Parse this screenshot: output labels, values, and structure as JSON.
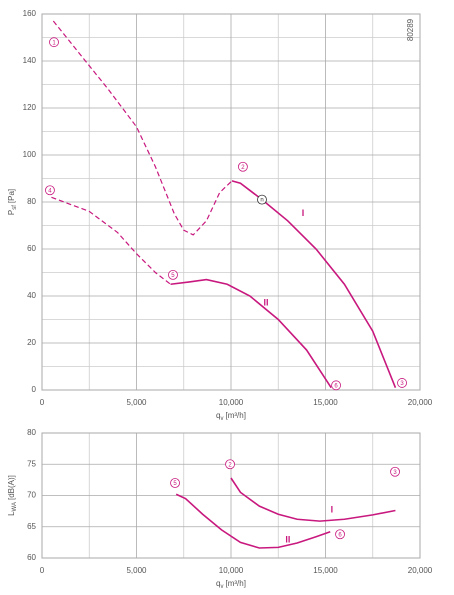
{
  "chart_data": [
    {
      "type": "line",
      "code": "80289",
      "xlabel_symbol": "q",
      "xlabel_sub": "v",
      "xlabel_unit": "[m³/h]",
      "ylabel_symbol": "P",
      "ylabel_sub": "sf",
      "ylabel_unit": "[Pa]",
      "xlim": [
        0,
        20000
      ],
      "ylim": [
        0,
        160
      ],
      "xticks": [
        0,
        {
          "value": 5000,
          "label": "5,000"
        },
        {
          "value": 10000,
          "label": "10,000"
        },
        {
          "value": 15000,
          "label": "15,000"
        },
        {
          "value": 20000,
          "label": "20,000"
        }
      ],
      "yticks": [
        0,
        20,
        40,
        60,
        80,
        100,
        120,
        140,
        160
      ],
      "x_minor_ticks": [
        2500,
        7500,
        12500,
        17500
      ],
      "y_minor_ticks": [
        10,
        30,
        50,
        70,
        90,
        110,
        130,
        150
      ],
      "grid": true,
      "color": "#c8187e",
      "series": [
        {
          "style": "dashed",
          "x": [
            600,
            2000,
            3500,
            5000,
            6000,
            7000,
            7500,
            8000,
            8700,
            9400,
            10050
          ],
          "values": [
            157,
            143,
            128,
            112,
            95,
            75,
            68,
            66,
            72,
            84,
            89
          ]
        },
        {
          "name": "I",
          "style": "solid",
          "x": [
            10050,
            10500,
            11640,
            13000,
            14500,
            16000,
            17500,
            18700
          ],
          "values": [
            89,
            88,
            81,
            72,
            60,
            45,
            25,
            1
          ]
        },
        {
          "style": "dashed",
          "x": [
            500,
            2500,
            4000,
            5000,
            6000,
            6800
          ],
          "values": [
            82,
            76,
            67,
            58,
            50,
            45
          ]
        },
        {
          "name": "II",
          "style": "solid",
          "x": [
            6800,
            7800,
            8700,
            9800,
            11000,
            12500,
            14000,
            15300
          ],
          "values": [
            45,
            46,
            47,
            45,
            40,
            30,
            17,
            1
          ]
        }
      ],
      "name_positions": [
        null,
        {
          "x": 13810,
          "y": 75
        },
        null,
        {
          "x": 11850,
          "y": 37
        }
      ],
      "markers": [
        {
          "label": "1",
          "x": 635,
          "y": 148
        },
        {
          "label": "2",
          "x": 10630,
          "y": 95
        },
        {
          "label": "4",
          "x": 420,
          "y": 85
        },
        {
          "label": "5",
          "x": 6930,
          "y": 49
        },
        {
          "label": "3",
          "x": 19050,
          "y": 3
        },
        {
          "label": "6",
          "x": 15560,
          "y": 2
        },
        {
          "label": "n",
          "x": 11640,
          "y": 81,
          "dark": true
        }
      ]
    },
    {
      "type": "line",
      "xlabel_symbol": "q",
      "xlabel_sub": "v",
      "xlabel_unit": "[m³/h]",
      "ylabel_symbol": "L",
      "ylabel_sub": "WA",
      "ylabel_unit": "[dB(A)]",
      "xlim": [
        0,
        20000
      ],
      "ylim": [
        60,
        80
      ],
      "xticks": [
        0,
        {
          "value": 5000,
          "label": "5,000"
        },
        {
          "value": 10000,
          "label": "10,000"
        },
        {
          "value": 15000,
          "label": "15,000"
        },
        {
          "value": 20000,
          "label": "20,000"
        }
      ],
      "yticks": [
        60,
        65,
        70,
        75,
        80
      ],
      "x_minor_ticks": [
        2500,
        7500,
        12500,
        17500
      ],
      "y_minor_ticks": [],
      "grid": true,
      "color": "#c8187e",
      "series": [
        {
          "name": "I",
          "style": "solid",
          "x": [
            10000,
            10500,
            11500,
            12500,
            13500,
            14700,
            16000,
            17500,
            18700
          ],
          "values": [
            72.8,
            70.5,
            68.3,
            67,
            66.2,
            65.9,
            66.2,
            66.9,
            67.6
          ]
        },
        {
          "name": "II",
          "style": "solid",
          "x": [
            7100,
            7600,
            8500,
            9500,
            10500,
            11500,
            12500,
            13500,
            14500,
            15250
          ],
          "values": [
            70.2,
            69.5,
            67,
            64.5,
            62.5,
            61.6,
            61.7,
            62.4,
            63.4,
            64.2
          ]
        }
      ],
      "name_positions": [
        {
          "x": 15340,
          "y": 67.7
        },
        {
          "x": 13010,
          "y": 62.9
        }
      ],
      "markers": [
        {
          "label": "5",
          "x": 7040,
          "y": 72
        },
        {
          "label": "2",
          "x": 9950,
          "y": 75
        },
        {
          "label": "3",
          "x": 18680,
          "y": 73.8
        },
        {
          "label": "6",
          "x": 15770,
          "y": 63.8
        }
      ]
    }
  ]
}
